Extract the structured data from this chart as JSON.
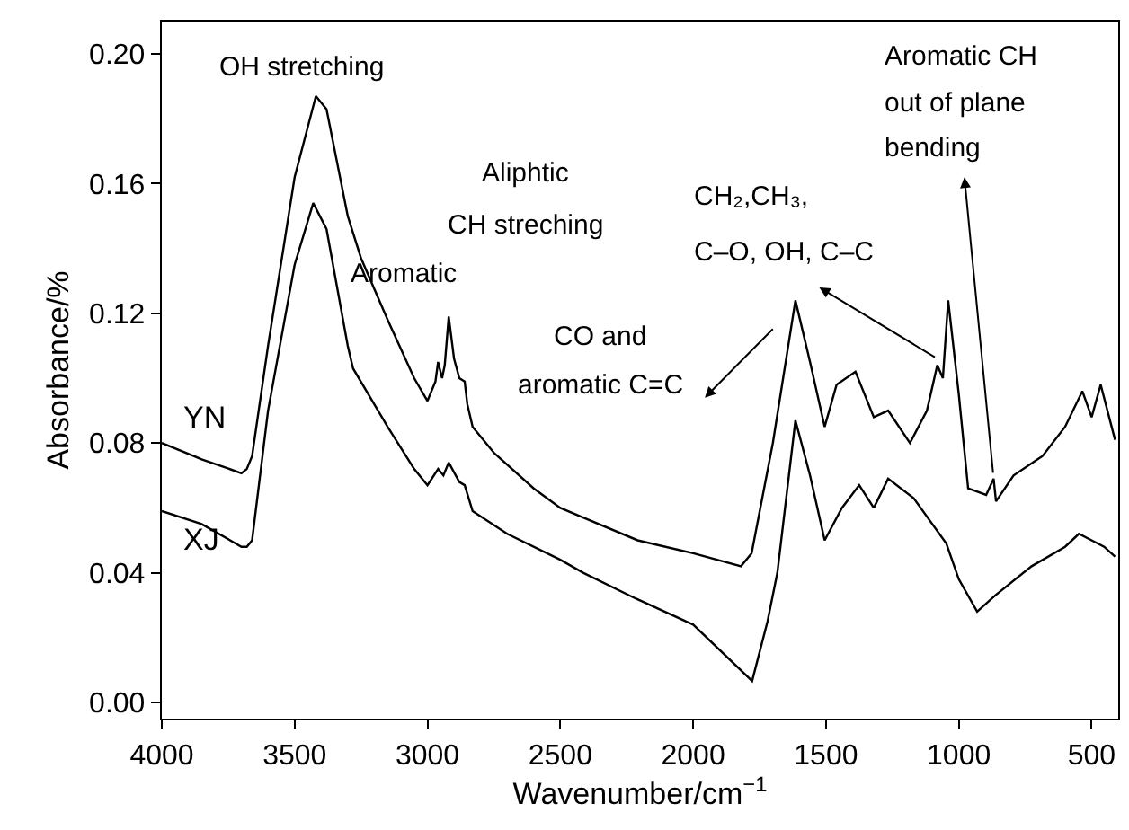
{
  "chart_data": {
    "type": "line",
    "xlabel": "Wavenumber/cm$^{−1}$",
    "ylabel": "Absorbance/%",
    "xlim": [
      4000,
      400
    ],
    "ylim": [
      -0.005,
      0.21
    ],
    "xticks": [
      4000,
      3500,
      3000,
      2500,
      2000,
      1500,
      1000,
      500
    ],
    "yticks": [
      {
        "value": 0,
        "label": "0.00"
      },
      0.04,
      0.08,
      0.12,
      0.16,
      {
        "value": 0.2,
        "label": "0.20"
      }
    ],
    "legend": false,
    "marker": "none",
    "line_style": "solid",
    "series": [
      {
        "name": "YN",
        "color": "#000000",
        "x": [
          4000,
          3850,
          3700,
          3680,
          3660,
          3600,
          3500,
          3420,
          3380,
          3300,
          3250,
          3150,
          3050,
          3000,
          2970,
          2960,
          2945,
          2935,
          2920,
          2900,
          2880,
          2860,
          2850,
          2830,
          2750,
          2600,
          2500,
          2414,
          2209,
          2000,
          1820,
          1780,
          1700,
          1615,
          1560,
          1505,
          1460,
          1389,
          1320,
          1266,
          1184,
          1120,
          1081,
          1060,
          1040,
          1000,
          965,
          897,
          869,
          860,
          794,
          685,
          600,
          535,
          500,
          466,
          412
        ],
        "values": [
          0.08,
          0.075,
          0.0707,
          0.072,
          0.076,
          0.11,
          0.162,
          0.187,
          0.183,
          0.15,
          0.137,
          0.118,
          0.1,
          0.093,
          0.099,
          0.105,
          0.1,
          0.104,
          0.119,
          0.106,
          0.1,
          0.099,
          0.092,
          0.085,
          0.077,
          0.066,
          0.06,
          0.057,
          0.05,
          0.046,
          0.042,
          0.046,
          0.08,
          0.124,
          0.105,
          0.085,
          0.098,
          0.102,
          0.088,
          0.09,
          0.08,
          0.09,
          0.104,
          0.1,
          0.124,
          0.095,
          0.066,
          0.064,
          0.069,
          0.062,
          0.07,
          0.076,
          0.085,
          0.096,
          0.088,
          0.098,
          0.081
        ]
      },
      {
        "name": "XJ",
        "color": "#000000",
        "x": [
          4000,
          3850,
          3700,
          3680,
          3660,
          3600,
          3500,
          3430,
          3380,
          3300,
          3280,
          3150,
          3050,
          3000,
          2960,
          2940,
          2920,
          2880,
          2860,
          2830,
          2700,
          2500,
          2414,
          2215,
          2000,
          1778,
          1720,
          1683,
          1615,
          1560,
          1505,
          1440,
          1375,
          1320,
          1266,
          1170,
          1047,
          1000,
          931,
          863,
          726,
          600,
          548,
          500,
          453,
          412
        ],
        "values": [
          0.059,
          0.055,
          0.048,
          0.048,
          0.05,
          0.09,
          0.135,
          0.154,
          0.146,
          0.11,
          0.103,
          0.085,
          0.072,
          0.067,
          0.072,
          0.07,
          0.074,
          0.068,
          0.067,
          0.059,
          0.052,
          0.044,
          0.04,
          0.032,
          0.024,
          0.0066,
          0.025,
          0.04,
          0.087,
          0.07,
          0.05,
          0.06,
          0.067,
          0.06,
          0.069,
          0.063,
          0.049,
          0.038,
          0.028,
          0.033,
          0.042,
          0.048,
          0.052,
          0.05,
          0.048,
          0.045
        ]
      }
    ],
    "annotations": [
      "OH stretching",
      "Aromatic",
      "Aliphtic",
      "CH streching",
      "CO and",
      "aromatic C=C",
      "CH₂,CH₃,",
      "C–O, OH, C–C",
      "Aromatic CH",
      "out of plane",
      "bending"
    ]
  }
}
